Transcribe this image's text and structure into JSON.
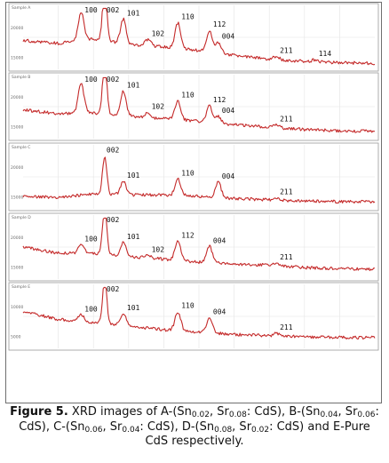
{
  "figure": {
    "caption": {
      "label": "Figure 5.",
      "parts": [
        {
          "t": " XRD images of A-(Sn"
        },
        {
          "sub": "0.02"
        },
        {
          "t": ", Sr"
        },
        {
          "sub": "0.08"
        },
        {
          "t": ": CdS), B-(Sn"
        },
        {
          "sub": "0.04"
        },
        {
          "t": ", Sr"
        },
        {
          "sub": "0.06"
        },
        {
          "t": ": CdS), C-(Sn"
        },
        {
          "sub": "0.06"
        },
        {
          "t": ", Sr"
        },
        {
          "sub": "0.04"
        },
        {
          "t": ": CdS), D-(Sn"
        },
        {
          "sub": "0.08"
        },
        {
          "t": ", Sr"
        },
        {
          "sub": "0.02"
        },
        {
          "t": ": CdS) and E-Pure CdS respectively."
        }
      ]
    }
  },
  "chart_data": [
    {
      "type": "line",
      "panel": "A",
      "sample_label": "Sample A",
      "y_tick_labels": [
        "20000",
        "15000"
      ],
      "baseline": [
        [
          0,
          0.55
        ],
        [
          0.1,
          0.6
        ],
        [
          0.2,
          0.52
        ],
        [
          0.3,
          0.62
        ],
        [
          0.4,
          0.66
        ],
        [
          0.5,
          0.72
        ],
        [
          0.6,
          0.8
        ],
        [
          0.7,
          0.86
        ],
        [
          0.8,
          0.9
        ],
        [
          0.9,
          0.92
        ],
        [
          1,
          0.93
        ]
      ],
      "peaks": [
        {
          "label": "100",
          "x": 0.165,
          "height": 0.52
        },
        {
          "label": "002",
          "x": 0.232,
          "height": 0.98
        },
        {
          "label": "101",
          "x": 0.285,
          "height": 0.45
        },
        {
          "label": "102",
          "x": 0.355,
          "height": 0.12
        },
        {
          "label": "110",
          "x": 0.44,
          "height": 0.47
        },
        {
          "label": "112",
          "x": 0.53,
          "height": 0.4
        },
        {
          "label": "004",
          "x": 0.555,
          "height": 0.2
        },
        {
          "label": "211",
          "x": 0.72,
          "height": 0.06
        },
        {
          "label": "114",
          "x": 0.83,
          "height": 0.04
        }
      ]
    },
    {
      "type": "line",
      "panel": "B",
      "sample_label": "Sample B",
      "y_tick_labels": [
        "20000",
        "15000"
      ],
      "baseline": [
        [
          0,
          0.55
        ],
        [
          0.1,
          0.62
        ],
        [
          0.2,
          0.6
        ],
        [
          0.3,
          0.66
        ],
        [
          0.4,
          0.7
        ],
        [
          0.5,
          0.74
        ],
        [
          0.6,
          0.8
        ],
        [
          0.7,
          0.84
        ],
        [
          0.8,
          0.88
        ],
        [
          0.9,
          0.9
        ],
        [
          1,
          0.91
        ]
      ],
      "peaks": [
        {
          "label": "100",
          "x": 0.165,
          "height": 0.55
        },
        {
          "label": "002",
          "x": 0.232,
          "height": 0.98
        },
        {
          "label": "101",
          "x": 0.285,
          "height": 0.45
        },
        {
          "label": "102",
          "x": 0.355,
          "height": 0.1
        },
        {
          "label": "110",
          "x": 0.44,
          "height": 0.35
        },
        {
          "label": "112",
          "x": 0.53,
          "height": 0.3
        },
        {
          "label": "004",
          "x": 0.555,
          "height": 0.12
        },
        {
          "label": "211",
          "x": 0.72,
          "height": 0.05
        }
      ]
    },
    {
      "type": "line",
      "panel": "C",
      "sample_label": "Sample C",
      "y_tick_labels": [
        "20000",
        "15000"
      ],
      "baseline": [
        [
          0,
          0.82
        ],
        [
          0.1,
          0.84
        ],
        [
          0.2,
          0.78
        ],
        [
          0.3,
          0.8
        ],
        [
          0.4,
          0.8
        ],
        [
          0.5,
          0.82
        ],
        [
          0.6,
          0.86
        ],
        [
          0.7,
          0.88
        ],
        [
          0.8,
          0.9
        ],
        [
          0.9,
          0.91
        ],
        [
          1,
          0.91
        ]
      ],
      "peaks": [
        {
          "label": "002",
          "x": 0.232,
          "height": 0.7
        },
        {
          "label": "101",
          "x": 0.285,
          "height": 0.25
        },
        {
          "label": "110",
          "x": 0.44,
          "height": 0.3
        },
        {
          "label": "004",
          "x": 0.555,
          "height": 0.28
        },
        {
          "label": "211",
          "x": 0.72,
          "height": 0.04
        }
      ]
    },
    {
      "type": "line",
      "panel": "D",
      "sample_label": "Sample D",
      "y_tick_labels": [
        "20000",
        "15000"
      ],
      "baseline": [
        [
          0,
          0.5
        ],
        [
          0.1,
          0.6
        ],
        [
          0.2,
          0.6
        ],
        [
          0.3,
          0.66
        ],
        [
          0.4,
          0.7
        ],
        [
          0.5,
          0.75
        ],
        [
          0.6,
          0.78
        ],
        [
          0.7,
          0.8
        ],
        [
          0.8,
          0.84
        ],
        [
          0.9,
          0.86
        ],
        [
          1,
          0.87
        ]
      ],
      "peaks": [
        {
          "label": "100",
          "x": 0.165,
          "height": 0.15
        },
        {
          "label": "002",
          "x": 0.232,
          "height": 0.85
        },
        {
          "label": "101",
          "x": 0.285,
          "height": 0.25
        },
        {
          "label": "102",
          "x": 0.355,
          "height": 0.05
        },
        {
          "label": "112",
          "x": 0.44,
          "height": 0.35
        },
        {
          "label": "004",
          "x": 0.53,
          "height": 0.3
        },
        {
          "label": "211",
          "x": 0.72,
          "height": 0.05
        }
      ]
    },
    {
      "type": "line",
      "panel": "E",
      "sample_label": "Sample E",
      "y_tick_labels": [
        "10000",
        "5000"
      ],
      "baseline": [
        [
          0,
          0.42
        ],
        [
          0.1,
          0.55
        ],
        [
          0.2,
          0.6
        ],
        [
          0.3,
          0.66
        ],
        [
          0.4,
          0.72
        ],
        [
          0.5,
          0.76
        ],
        [
          0.6,
          0.8
        ],
        [
          0.7,
          0.82
        ],
        [
          0.8,
          0.84
        ],
        [
          0.9,
          0.85
        ],
        [
          1,
          0.85
        ]
      ],
      "peaks": [
        {
          "label": "100",
          "x": 0.165,
          "height": 0.12
        },
        {
          "label": "002",
          "x": 0.232,
          "height": 0.8
        },
        {
          "label": "101",
          "x": 0.285,
          "height": 0.22
        },
        {
          "label": "110",
          "x": 0.44,
          "height": 0.35
        },
        {
          "label": "004",
          "x": 0.53,
          "height": 0.28
        },
        {
          "label": "211",
          "x": 0.72,
          "height": 0.05
        }
      ]
    }
  ]
}
